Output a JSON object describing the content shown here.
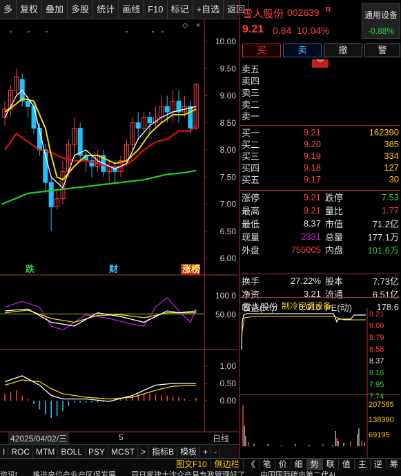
{
  "toolbar": {
    "items": [
      "多",
      "复权",
      "叠加",
      "多股",
      "统计",
      "画线",
      "F10",
      "标记",
      "+自选",
      "返回"
    ]
  },
  "kline_axis": [
    "10.00",
    "9.50",
    "9.00",
    "8.50",
    "8.00",
    "7.50",
    "7.00",
    "6.50",
    "6.00"
  ],
  "markers": {
    "fall": "跌",
    "finance": "财",
    "limit_up": "涨榜"
  },
  "ind1_axis": [
    "100.0",
    "50.00"
  ],
  "ind2_axis": [
    "1.00",
    "0.50",
    "0.00"
  ],
  "date_label": "42025/04/02/三",
  "date_tick": "5",
  "period_label": "日线",
  "bottom_tabs": [
    "I",
    "ROC",
    "MTM",
    "BOLL",
    "PSY",
    "MCST",
    ">",
    "指标B",
    "模板",
    "+",
    "-"
  ],
  "stock": {
    "name": "雪人股份",
    "code": "002639",
    "flag": "R",
    "sector": "通用设备",
    "sector_change": "-0.88%",
    "price": "9.21",
    "change": "0.84",
    "change_pct": "10.04%"
  },
  "trade_buttons": {
    "buy": "买",
    "sell": "卖",
    "cancel": "撤",
    "alert": "警"
  },
  "asks": [
    {
      "label": "卖五",
      "price": "",
      "vol": ""
    },
    {
      "label": "卖四",
      "price": "",
      "vol": ""
    },
    {
      "label": "卖三",
      "price": "",
      "vol": ""
    },
    {
      "label": "卖二",
      "price": "",
      "vol": ""
    },
    {
      "label": "卖一",
      "price": "",
      "vol": ""
    }
  ],
  "bids": [
    {
      "label": "买一",
      "price": "9.21",
      "vol": "162390"
    },
    {
      "label": "买二",
      "price": "9.20",
      "vol": "385"
    },
    {
      "label": "买三",
      "price": "9.19",
      "vol": "334"
    },
    {
      "label": "买四",
      "price": "9.18",
      "vol": "127"
    },
    {
      "label": "买五",
      "price": "9.17",
      "vol": "30"
    }
  ],
  "quote_rows": [
    {
      "l1": "涨停",
      "v1": "9.21",
      "c1": "red",
      "l2": "跌停",
      "v2": "7.53",
      "c2": "green"
    },
    {
      "l1": "最高",
      "v1": "9.21",
      "c1": "red",
      "l2": "量比",
      "v2": "1.77",
      "c2": "red"
    },
    {
      "l1": "最低",
      "v1": "8.37",
      "c1": "white",
      "l2": "市值",
      "v2": "71.2亿",
      "c2": "white"
    },
    {
      "l1": "现量",
      "v1": "2331",
      "c1": "purple",
      "l2": "总量",
      "v2": "177.1万",
      "c2": "white"
    },
    {
      "l1": "外盘",
      "v1": "755005",
      "c1": "red",
      "l2": "内盘",
      "v2": "101.6万",
      "c2": "green"
    }
  ],
  "fund_rows": [
    {
      "l1": "换手",
      "v1": "27.22%",
      "l2": "股本",
      "v2": "7.73亿"
    },
    {
      "l1": "净资",
      "v1": "3.21",
      "l2": "流通",
      "v2": "6.51亿"
    },
    {
      "l1": "收益(一)",
      "v1": "0.010",
      "l2": "PE(动)",
      "v2": "178.6"
    }
  ],
  "mini": {
    "name": "雪人股份",
    "sector": "制冷空调设备",
    "price_axis": [
      {
        "v": "9.21",
        "c": "red"
      },
      {
        "v": "9.00",
        "c": "red"
      },
      {
        "v": "8.79",
        "c": "red"
      },
      {
        "v": "8.58",
        "c": "red"
      },
      {
        "v": "8.37",
        "c": "white"
      },
      {
        "v": "8.16",
        "c": "green"
      },
      {
        "v": "7.95",
        "c": "green"
      },
      {
        "v": "7.74",
        "c": "green"
      }
    ],
    "vol_axis": [
      "207585",
      "138390",
      "69195"
    ]
  },
  "side_tabs": [
    "图文F10",
    "侧边栏",
    "《",
    "笔",
    "价",
    "细",
    "势",
    "联",
    "值",
    "主",
    "逆",
    "筹"
  ],
  "status_text": [
    "资讯[",
    "推进高位产业产区促发展",
    "同日家建士沈众产易专政管理好了",
    "中国国际碳市第二代Ai"
  ],
  "colors": {
    "up": "#ff4040",
    "down": "#2ecc40",
    "ma5": "#ffffff",
    "ma10": "#ffd700",
    "ma20": "#e01010",
    "ma60": "#20d020"
  }
}
